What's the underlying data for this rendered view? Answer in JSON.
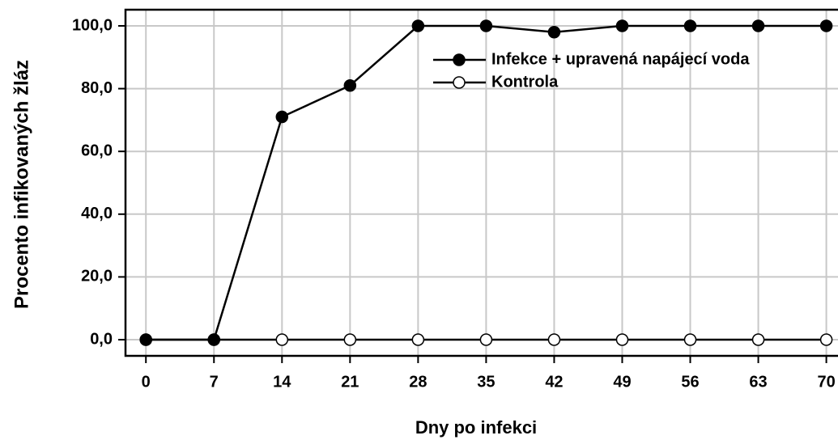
{
  "chart_data": {
    "type": "line",
    "x_label": "Dny po infekci",
    "y_label": "Procento infikovaných žláz",
    "x": [
      0,
      7,
      14,
      21,
      28,
      35,
      42,
      49,
      56,
      63,
      70
    ],
    "series": [
      {
        "name": "Infekce + upravená napájecí voda",
        "color": "#000000",
        "marker_fill": "#000000",
        "values": [
          0,
          0,
          71,
          81,
          100,
          100,
          98,
          100,
          100,
          100,
          100
        ]
      },
      {
        "name": "Kontrola",
        "color": "#000000",
        "marker_fill": "#ffffff",
        "values": [
          0,
          0,
          0,
          0,
          0,
          0,
          0,
          0,
          0,
          0,
          0
        ]
      }
    ],
    "xlim": [
      -2.1,
      71.2
    ],
    "ylim": [
      -5.15,
      105.15
    ],
    "xticks": [
      0,
      7,
      14,
      21,
      28,
      35,
      42,
      49,
      56,
      63,
      70
    ],
    "yticks": [
      {
        "value": 0,
        "label": "0,0"
      },
      {
        "value": 20,
        "label": "20,0"
      },
      {
        "value": 40,
        "label": "40,0"
      },
      {
        "value": 60,
        "label": "60,0"
      },
      {
        "value": 80,
        "label": "80,0"
      },
      {
        "value": 100,
        "label": "100,0"
      }
    ],
    "grid": true
  }
}
